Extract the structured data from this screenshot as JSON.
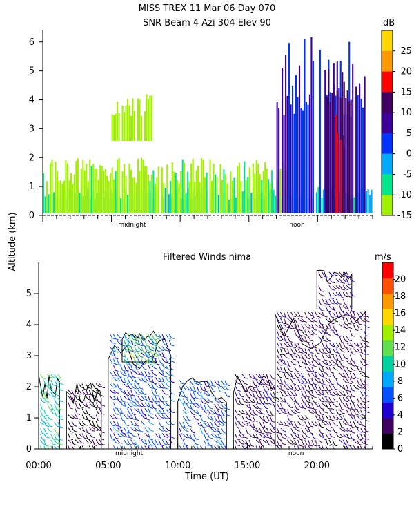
{
  "figure": {
    "title_line1": "MISS TREX  11 Mar 06 Day 070",
    "title_line2": "SNR Beam 4 Azi 304 Elev 90",
    "ylabel": "Altitude (km)",
    "xlabel": "Time (UT)"
  },
  "chart_data": [
    {
      "type": "heatmap",
      "title": "SNR Beam 4 Azi 304 Elev 90",
      "ylim": [
        0,
        6.4
      ],
      "yticks": [
        "0",
        "1",
        "2",
        "3",
        "4",
        "5",
        "6"
      ],
      "xlim_hours": [
        0,
        24
      ],
      "x_markers": [
        {
          "label": "midnight",
          "hour": 6.5
        },
        {
          "label": "noon",
          "hour": 18.5
        }
      ],
      "colorbar": {
        "unit": "dB",
        "ticks": [
          "25",
          "20",
          "15",
          "10",
          "5",
          "0",
          "-5",
          "-10",
          "-15"
        ],
        "colors": [
          "#ffd700",
          "#ff9900",
          "#ff0000",
          "#40005f",
          "#3c0096",
          "#0032ff",
          "#00aaff",
          "#00e68c",
          "#a0f000"
        ],
        "range": [
          -15,
          30
        ]
      },
      "regions": [
        {
          "name": "low layer",
          "x": [
            0,
            24
          ],
          "y": [
            0,
            1.0
          ],
          "snr_db": -5
        },
        {
          "name": "boundary layer",
          "x": [
            0,
            18
          ],
          "y": [
            0,
            2.0
          ],
          "snr_db": -12
        },
        {
          "name": "plume",
          "x": [
            5,
            8
          ],
          "y": [
            2.5,
            4.2
          ],
          "snr_db": -13
        },
        {
          "name": "evening deep layer",
          "x": [
            17,
            23.5
          ],
          "y": [
            0,
            6.2
          ],
          "snr_db": 5
        },
        {
          "name": "strong core",
          "x": [
            20.5,
            22.5
          ],
          "y": [
            0,
            5.5
          ],
          "snr_db": 12
        },
        {
          "name": "bright streak",
          "x": [
            21.3,
            22.0
          ],
          "y": [
            0,
            3.5
          ],
          "snr_db": 16
        }
      ]
    },
    {
      "type": "scatter",
      "title": "Filtered Winds nima",
      "ylim": [
        0,
        6
      ],
      "yticks": [
        "0",
        "1",
        "2",
        "3",
        "4",
        "5"
      ],
      "xlim_hours": [
        0,
        24
      ],
      "xticks": [
        "00:00",
        "05:00",
        "10:00",
        "15:00",
        "20:00"
      ],
      "xtick_hours": [
        0,
        5,
        10,
        15,
        20
      ],
      "x_markers": [
        {
          "label": "midnight",
          "hour": 6.5
        },
        {
          "label": "noon",
          "hour": 18.5
        }
      ],
      "colorbar": {
        "unit": "m/s",
        "ticks": [
          "20",
          "18",
          "16",
          "14",
          "12",
          "10",
          "8",
          "6",
          "4",
          "2",
          "0"
        ],
        "colors": [
          "#000000",
          "#40005f",
          "#2000d0",
          "#0050ff",
          "#00aaff",
          "#00d2a0",
          "#60e050",
          "#a0f000",
          "#ffd700",
          "#ff9900",
          "#ff5000",
          "#ff0000"
        ],
        "range": [
          0,
          22
        ]
      },
      "wind_regions": [
        {
          "x": [
            0,
            1.5
          ],
          "y": [
            0,
            2.5
          ],
          "speed": 10
        },
        {
          "x": [
            2,
            4.5
          ],
          "y": [
            0,
            2.2
          ],
          "speed": 2
        },
        {
          "x": [
            5,
            9.5
          ],
          "y": [
            0,
            3.8
          ],
          "speed": 6
        },
        {
          "x": [
            6,
            8.5
          ],
          "y": [
            2.8,
            3.8
          ],
          "speed": 12
        },
        {
          "x": [
            10,
            13.5
          ],
          "y": [
            0,
            2.3
          ],
          "speed": 6
        },
        {
          "x": [
            14,
            17
          ],
          "y": [
            0,
            2.5
          ],
          "speed": 3
        },
        {
          "x": [
            17,
            23.5
          ],
          "y": [
            0,
            4.5
          ],
          "speed": 3
        },
        {
          "x": [
            20,
            22.5
          ],
          "y": [
            4.5,
            5.8
          ],
          "speed": 4
        }
      ]
    }
  ]
}
